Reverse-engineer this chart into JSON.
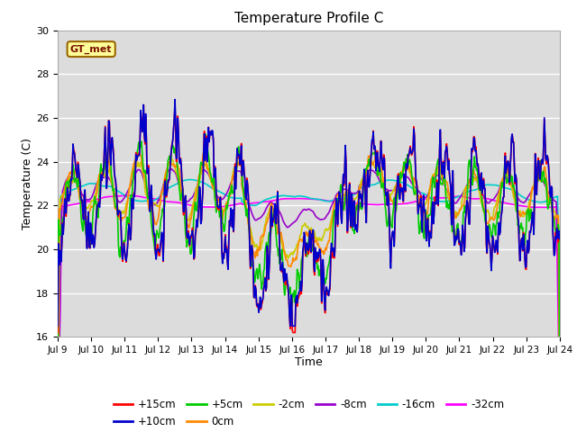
{
  "title": "Temperature Profile C",
  "xlabel": "Time",
  "ylabel": "Temperature (C)",
  "ylim": [
    16,
    30
  ],
  "background_color": "#dcdcdc",
  "fig_color": "#ffffff",
  "series_colors": {
    "+15cm": "#ff0000",
    "+10cm": "#0000cc",
    "+5cm": "#00cc00",
    "0cm": "#ff8800",
    "-2cm": "#cccc00",
    "-8cm": "#9900cc",
    "-16cm": "#00cccc",
    "-32cm": "#ff00ff"
  },
  "legend_label": "GT_met",
  "legend_box_color": "#ffff99",
  "legend_box_edge": "#996600",
  "tick_labels": [
    "Jul 9",
    "Jul 10",
    "Jul 11",
    "Jul 12",
    "Jul 13",
    "Jul 14",
    "Jul 15",
    "Jul 16",
    "Jul 17",
    "Jul 18",
    "Jul 19",
    "Jul 20",
    "Jul 21",
    "Jul 22",
    "Jul 23",
    "Jul 24"
  ],
  "yticks": [
    16,
    18,
    20,
    22,
    24,
    26,
    28,
    30
  ]
}
